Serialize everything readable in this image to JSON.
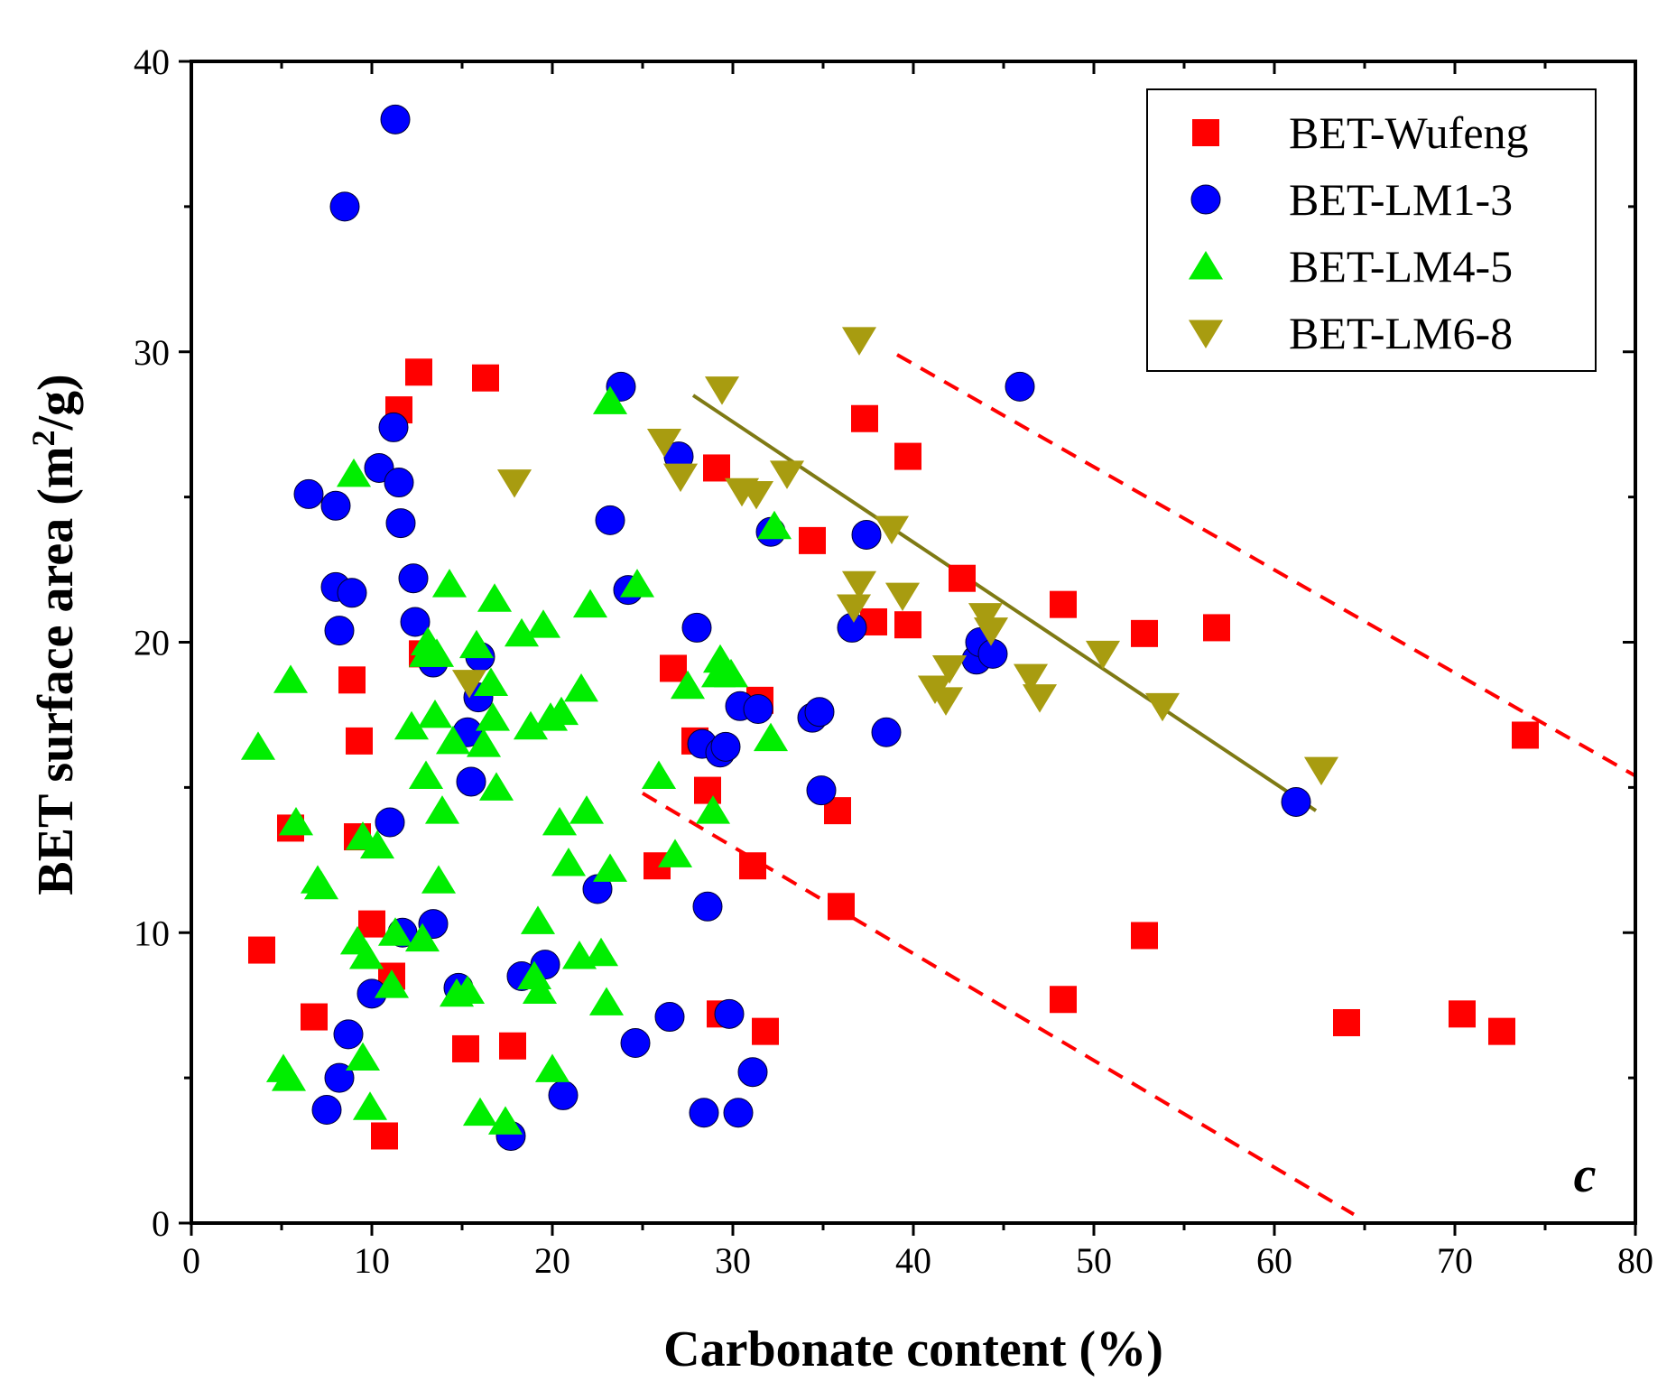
{
  "chart_data": {
    "type": "scatter",
    "title": "",
    "panel_label": "c",
    "xlabel": "Carbonate content (%)",
    "ylabel_main": "BET surface area (m",
    "ylabel_sup": "2",
    "ylabel_end": "/g)",
    "xlim": [
      0,
      80
    ],
    "ylim": [
      0,
      40
    ],
    "xticks": [
      0,
      10,
      20,
      30,
      40,
      50,
      60,
      70,
      80
    ],
    "yticks": [
      0,
      10,
      20,
      30,
      40
    ],
    "grid": false,
    "legend_position": "top-right",
    "series": [
      {
        "name": "BET-Wufeng",
        "marker": "square",
        "color": "#ff0000",
        "points": [
          [
            3.9,
            9.4
          ],
          [
            5.5,
            13.6
          ],
          [
            6.8,
            7.1
          ],
          [
            8.9,
            18.7
          ],
          [
            9.3,
            16.6
          ],
          [
            9.2,
            13.3
          ],
          [
            10.0,
            10.3
          ],
          [
            10.7,
            3.0
          ],
          [
            11.1,
            8.5
          ],
          [
            11.5,
            28.0
          ],
          [
            12.6,
            29.3
          ],
          [
            12.8,
            19.6
          ],
          [
            15.2,
            6.0
          ],
          [
            16.3,
            29.1
          ],
          [
            17.8,
            6.1
          ],
          [
            25.8,
            12.3
          ],
          [
            26.7,
            19.1
          ],
          [
            27.9,
            16.6
          ],
          [
            28.6,
            14.9
          ],
          [
            29.1,
            26.0
          ],
          [
            29.3,
            7.2
          ],
          [
            31.1,
            12.3
          ],
          [
            31.5,
            18.0
          ],
          [
            31.8,
            6.6
          ],
          [
            34.4,
            23.5
          ],
          [
            35.8,
            14.2
          ],
          [
            36.0,
            10.9
          ],
          [
            37.3,
            27.7
          ],
          [
            37.8,
            20.7
          ],
          [
            39.7,
            26.4
          ],
          [
            39.7,
            20.6
          ],
          [
            42.7,
            22.2
          ],
          [
            48.3,
            21.3
          ],
          [
            48.3,
            7.7
          ],
          [
            52.8,
            20.3
          ],
          [
            52.8,
            9.9
          ],
          [
            56.8,
            20.5
          ],
          [
            64.0,
            6.9
          ],
          [
            70.4,
            7.2
          ],
          [
            72.6,
            6.6
          ],
          [
            73.9,
            16.8
          ]
        ]
      },
      {
        "name": "BET-LM1-3",
        "marker": "circle",
        "color": "#0000ff",
        "points": [
          [
            6.5,
            25.1
          ],
          [
            7.5,
            3.9
          ],
          [
            8.0,
            24.7
          ],
          [
            8.0,
            21.9
          ],
          [
            8.2,
            20.4
          ],
          [
            8.2,
            5.0
          ],
          [
            8.5,
            35.0
          ],
          [
            8.7,
            6.5
          ],
          [
            8.9,
            21.7
          ],
          [
            10.0,
            7.9
          ],
          [
            10.4,
            26.0
          ],
          [
            11.0,
            13.8
          ],
          [
            11.2,
            27.4
          ],
          [
            11.3,
            38.0
          ],
          [
            11.5,
            25.5
          ],
          [
            11.6,
            24.1
          ],
          [
            11.7,
            10.0
          ],
          [
            12.3,
            22.2
          ],
          [
            12.4,
            20.7
          ],
          [
            13.4,
            10.3
          ],
          [
            13.4,
            19.3
          ],
          [
            14.8,
            8.1
          ],
          [
            15.3,
            16.9
          ],
          [
            15.5,
            15.2
          ],
          [
            15.9,
            18.1
          ],
          [
            16.0,
            19.5
          ],
          [
            17.7,
            3.0
          ],
          [
            18.3,
            8.5
          ],
          [
            19.6,
            8.9
          ],
          [
            20.6,
            4.4
          ],
          [
            22.5,
            11.5
          ],
          [
            23.2,
            24.2
          ],
          [
            23.8,
            28.8
          ],
          [
            24.2,
            21.8
          ],
          [
            24.6,
            6.2
          ],
          [
            26.5,
            7.1
          ],
          [
            27.0,
            26.4
          ],
          [
            28.0,
            20.5
          ],
          [
            28.3,
            16.5
          ],
          [
            28.4,
            3.8
          ],
          [
            28.6,
            10.9
          ],
          [
            29.3,
            16.2
          ],
          [
            29.6,
            16.4
          ],
          [
            29.8,
            7.2
          ],
          [
            30.3,
            3.8
          ],
          [
            30.4,
            17.8
          ],
          [
            31.1,
            5.2
          ],
          [
            31.4,
            17.7
          ],
          [
            32.1,
            23.8
          ],
          [
            34.4,
            17.4
          ],
          [
            34.8,
            17.6
          ],
          [
            34.9,
            14.9
          ],
          [
            36.6,
            20.5
          ],
          [
            37.4,
            23.7
          ],
          [
            38.5,
            16.9
          ],
          [
            43.5,
            19.4
          ],
          [
            43.7,
            20.0
          ],
          [
            44.4,
            19.6
          ],
          [
            45.9,
            28.8
          ],
          [
            61.2,
            14.5
          ]
        ]
      },
      {
        "name": "BET-LM4-5",
        "marker": "triangle-up",
        "color": "#00ee00",
        "points": [
          [
            3.7,
            16.4
          ],
          [
            5.1,
            5.3
          ],
          [
            5.4,
            5.0
          ],
          [
            5.5,
            18.7
          ],
          [
            5.8,
            13.8
          ],
          [
            7.0,
            11.8
          ],
          [
            7.2,
            11.6
          ],
          [
            9.0,
            25.8
          ],
          [
            9.2,
            9.7
          ],
          [
            9.5,
            13.3
          ],
          [
            9.5,
            5.7
          ],
          [
            9.7,
            9.2
          ],
          [
            9.9,
            4.0
          ],
          [
            10.3,
            13.0
          ],
          [
            11.1,
            8.2
          ],
          [
            11.3,
            10.0
          ],
          [
            12.2,
            17.1
          ],
          [
            12.8,
            9.8
          ],
          [
            13.0,
            15.4
          ],
          [
            13.0,
            19.6
          ],
          [
            13.1,
            20.0
          ],
          [
            13.5,
            17.5
          ],
          [
            13.6,
            19.6
          ],
          [
            13.7,
            11.8
          ],
          [
            13.9,
            14.2
          ],
          [
            14.3,
            22.0
          ],
          [
            14.5,
            16.6
          ],
          [
            14.7,
            7.9
          ],
          [
            15.3,
            8.0
          ],
          [
            15.8,
            19.9
          ],
          [
            16.0,
            3.8
          ],
          [
            16.2,
            16.5
          ],
          [
            16.6,
            18.6
          ],
          [
            16.7,
            17.4
          ],
          [
            16.8,
            21.5
          ],
          [
            16.9,
            15.0
          ],
          [
            17.4,
            3.5
          ],
          [
            18.3,
            20.3
          ],
          [
            18.8,
            17.1
          ],
          [
            19.0,
            8.5
          ],
          [
            19.2,
            10.4
          ],
          [
            19.3,
            8.0
          ],
          [
            19.5,
            20.6
          ],
          [
            19.9,
            17.4
          ],
          [
            20.0,
            5.3
          ],
          [
            20.4,
            13.8
          ],
          [
            20.5,
            17.6
          ],
          [
            20.9,
            12.4
          ],
          [
            21.5,
            9.2
          ],
          [
            21.6,
            18.4
          ],
          [
            21.9,
            14.2
          ],
          [
            22.1,
            21.3
          ],
          [
            22.7,
            9.3
          ],
          [
            23.0,
            7.6
          ],
          [
            23.2,
            28.3
          ],
          [
            23.2,
            12.2
          ],
          [
            24.7,
            22.0
          ],
          [
            25.9,
            15.4
          ],
          [
            26.8,
            12.7
          ],
          [
            27.5,
            18.5
          ],
          [
            28.9,
            14.2
          ],
          [
            29.2,
            18.9
          ],
          [
            29.3,
            19.4
          ],
          [
            29.9,
            18.9
          ],
          [
            32.1,
            16.7
          ],
          [
            32.3,
            24.0
          ]
        ]
      },
      {
        "name": "BET-LM6-8",
        "marker": "triangle-down",
        "color": "#a89c10",
        "points": [
          [
            15.4,
            18.6
          ],
          [
            17.9,
            25.5
          ],
          [
            26.2,
            26.9
          ],
          [
            27.1,
            25.7
          ],
          [
            29.4,
            28.7
          ],
          [
            30.5,
            25.2
          ],
          [
            31.3,
            25.1
          ],
          [
            33.0,
            25.8
          ],
          [
            36.7,
            21.2
          ],
          [
            37.0,
            30.4
          ],
          [
            37.0,
            22.0
          ],
          [
            38.8,
            23.9
          ],
          [
            39.4,
            21.6
          ],
          [
            41.2,
            18.4
          ],
          [
            41.8,
            18.0
          ],
          [
            42.0,
            19.1
          ],
          [
            44.0,
            20.9
          ],
          [
            44.3,
            20.4
          ],
          [
            46.5,
            18.8
          ],
          [
            47.0,
            18.1
          ],
          [
            50.5,
            19.6
          ],
          [
            53.8,
            17.8
          ],
          [
            62.6,
            15.6
          ]
        ]
      }
    ],
    "lines": [
      {
        "name": "LM6-8-trend",
        "style": "solid",
        "color": "#7f7a14",
        "from": [
          27.8,
          28.5
        ],
        "to": [
          62.3,
          14.2
        ]
      },
      {
        "name": "upper-bound",
        "style": "dashed",
        "color": "#ff0000",
        "from": [
          39.1,
          29.9
        ],
        "to": [
          80.0,
          15.4
        ]
      },
      {
        "name": "lower-bound",
        "style": "dashed",
        "color": "#ff0000",
        "from": [
          25.0,
          14.8
        ],
        "to": [
          64.4,
          0.3
        ]
      }
    ]
  }
}
